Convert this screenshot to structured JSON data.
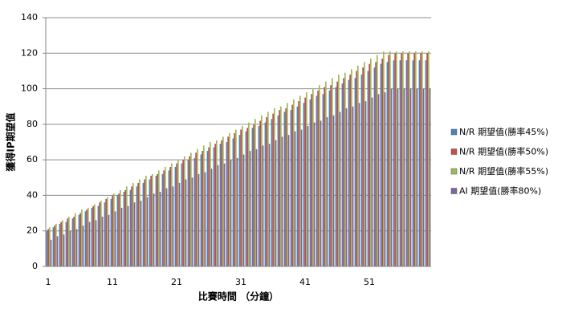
{
  "chart_data": {
    "type": "bar",
    "x_label": "比賽時間 （分鐘）",
    "y_label": "獲得IP期望值",
    "categories": [
      "1",
      null,
      null,
      null,
      null,
      null,
      null,
      null,
      null,
      null,
      "11",
      null,
      null,
      null,
      null,
      null,
      null,
      null,
      null,
      null,
      "21",
      null,
      null,
      null,
      null,
      null,
      null,
      null,
      null,
      null,
      "31",
      null,
      null,
      null,
      null,
      null,
      null,
      null,
      null,
      null,
      "41",
      null,
      null,
      null,
      null,
      null,
      null,
      null,
      null,
      null,
      "51",
      null,
      null,
      null,
      null,
      null,
      null,
      null,
      null,
      null
    ],
    "series": [
      {
        "name": "N/R 期望值(勝率45%)",
        "color": "#4f81bd",
        "values": [
          20,
          22,
          24,
          25,
          27,
          29,
          31,
          33,
          34,
          36,
          38,
          40,
          42,
          43,
          45,
          47,
          49,
          51,
          52,
          54,
          56,
          58,
          60,
          61,
          63,
          65,
          67,
          69,
          70,
          72,
          74,
          76,
          78,
          79,
          81,
          83,
          85,
          87,
          88,
          90,
          92,
          94,
          96,
          97,
          99,
          101,
          103,
          105,
          106,
          108,
          110,
          112,
          114,
          115,
          116,
          116,
          116,
          116,
          116,
          116
        ]
      },
      {
        "name": "N/R 期望值(勝率50%)",
        "color": "#c0504d",
        "values": [
          21,
          23,
          25,
          27,
          28,
          30,
          32,
          34,
          36,
          38,
          40,
          41,
          43,
          45,
          47,
          49,
          51,
          52,
          54,
          56,
          58,
          60,
          62,
          64,
          65,
          67,
          69,
          71,
          73,
          75,
          77,
          78,
          80,
          82,
          84,
          86,
          88,
          89,
          91,
          93,
          95,
          97,
          99,
          101,
          102,
          104,
          106,
          108,
          110,
          112,
          114,
          115,
          117,
          119,
          120,
          120,
          120,
          120,
          120,
          120
        ]
      },
      {
        "name": "N/R 期望值(勝率55%)",
        "color": "#9bbb59",
        "values": [
          22,
          24,
          26,
          28,
          30,
          32,
          33,
          35,
          37,
          39,
          41,
          43,
          45,
          47,
          49,
          51,
          52,
          54,
          56,
          58,
          60,
          62,
          64,
          66,
          68,
          70,
          71,
          73,
          75,
          77,
          79,
          81,
          83,
          85,
          87,
          89,
          90,
          92,
          94,
          96,
          98,
          100,
          102,
          104,
          106,
          108,
          109,
          111,
          113,
          115,
          117,
          119,
          121,
          121,
          121,
          121,
          121,
          121,
          121,
          121
        ]
      },
      {
        "name": "AI 期望值(勝率80%)",
        "color": "#8064a2",
        "values": [
          15,
          17,
          18,
          20,
          21,
          23,
          25,
          26,
          28,
          29,
          31,
          33,
          34,
          36,
          37,
          39,
          41,
          42,
          44,
          45,
          47,
          49,
          50,
          52,
          53,
          55,
          57,
          58,
          60,
          61,
          63,
          65,
          66,
          68,
          69,
          71,
          73,
          74,
          76,
          77,
          79,
          81,
          82,
          84,
          85,
          87,
          89,
          90,
          92,
          93,
          95,
          97,
          98,
          100,
          100,
          100,
          100,
          100,
          100,
          100
        ]
      }
    ],
    "ylim": [
      0,
      140
    ],
    "yticks": [
      0,
      20,
      40,
      60,
      80,
      100,
      120,
      140
    ],
    "grid": true,
    "legend": "right"
  }
}
